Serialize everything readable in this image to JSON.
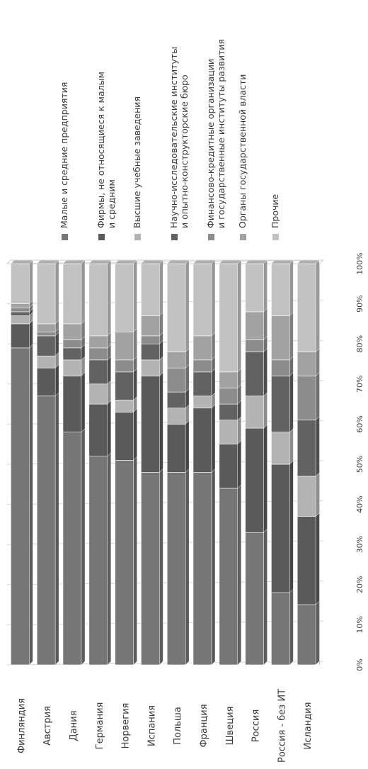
{
  "chart_data": {
    "type": "bar",
    "orientation": "horizontal",
    "stacked": "percent",
    "xlim": [
      0,
      100
    ],
    "xticks": [
      "0%",
      "10%",
      "20%",
      "30%",
      "40%",
      "50%",
      "60%",
      "70%",
      "80%",
      "90%",
      "100%"
    ],
    "categories": [
      "Финляндия",
      "Австрия",
      "Дания",
      "Германия",
      "Норвегия",
      "Испания",
      "Польша",
      "Франция",
      "Швеция",
      "Россия",
      "Россия - без ИТ",
      "Исландия"
    ],
    "series": [
      {
        "name": "Малые и средние предприятия",
        "color": "#767676",
        "values": [
          79,
          67,
          58,
          52,
          51,
          48,
          48,
          48,
          44,
          33,
          18,
          15
        ]
      },
      {
        "name": "Фирмы, не относящиеся к малым и средним",
        "color": "#5a5a5a",
        "values": [
          6,
          7,
          14,
          13,
          12,
          24,
          12,
          16,
          11,
          26,
          32,
          22
        ]
      },
      {
        "name": "Высшие учебные заведения",
        "color": "#b3b3b3",
        "values": [
          2,
          3,
          4,
          5,
          3,
          4,
          4,
          3,
          6,
          8,
          8,
          10
        ]
      },
      {
        "name": "Научно-исследовательские институты и опытно-конструкторские бюро",
        "color": "#626262",
        "values": [
          1,
          5,
          3,
          6,
          7,
          4,
          4,
          6,
          4,
          11,
          14,
          14
        ]
      },
      {
        "name": "Финансово-кредитные организации и государственные институты развития",
        "color": "#8c8c8c",
        "values": [
          1,
          1,
          2,
          3,
          3,
          2,
          6,
          3,
          4,
          3,
          4,
          11
        ]
      },
      {
        "name": "Органы государственной власти",
        "color": "#a2a2a2",
        "values": [
          1,
          2,
          4,
          3,
          7,
          5,
          4,
          6,
          4,
          7,
          11,
          6
        ]
      },
      {
        "name": "Прочие",
        "color": "#c2c2c2",
        "values": [
          10,
          15,
          15,
          18,
          17,
          13,
          22,
          18,
          27,
          12,
          13,
          22
        ]
      }
    ],
    "legend_position": "right",
    "grid": true
  }
}
